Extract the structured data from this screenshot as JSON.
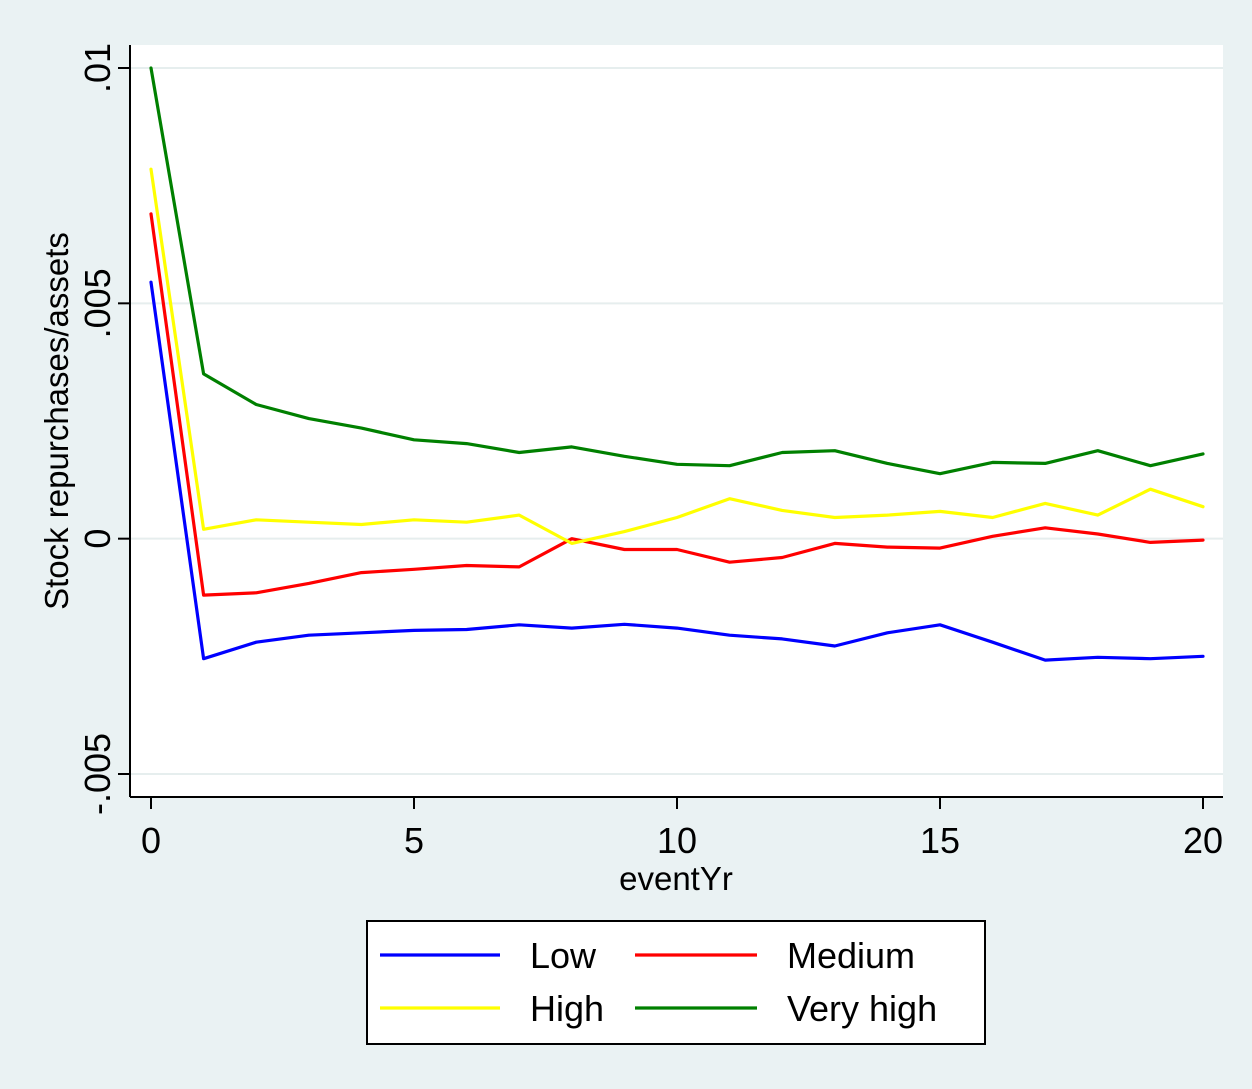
{
  "chart_data": {
    "type": "line",
    "xlabel": "eventYr",
    "ylabel": "Stock repurchases/assets",
    "xlim": [
      0,
      20
    ],
    "ylim": [
      -0.005,
      0.01
    ],
    "xticks": [
      0,
      5,
      10,
      15,
      20
    ],
    "xtick_labels": [
      "0",
      "5",
      "10",
      "15",
      "20"
    ],
    "yticks": [
      -0.005,
      0,
      0.005,
      0.01
    ],
    "ytick_labels": [
      "-.005",
      "0",
      ".005",
      ".01"
    ],
    "grid": true,
    "legend_position": "bottom",
    "x": [
      0,
      1,
      2,
      3,
      4,
      5,
      6,
      7,
      8,
      9,
      10,
      11,
      12,
      13,
      14,
      15,
      16,
      17,
      18,
      19,
      20
    ],
    "series": [
      {
        "name": "Low",
        "color": "#0000ff",
        "values": [
          0.00545,
          -0.00255,
          -0.0022,
          -0.00205,
          -0.002,
          -0.00195,
          -0.00193,
          -0.00183,
          -0.0019,
          -0.00182,
          -0.0019,
          -0.00205,
          -0.00213,
          -0.00228,
          -0.002,
          -0.00183,
          -0.0022,
          -0.00258,
          -0.00252,
          -0.00255,
          -0.0025
        ]
      },
      {
        "name": "Medium",
        "color": "#ff0000",
        "values": [
          0.0069,
          -0.0012,
          -0.00115,
          -0.00095,
          -0.00072,
          -0.00065,
          -0.00057,
          -0.0006,
          0.0,
          -0.00023,
          -0.00023,
          -0.0005,
          -0.0004,
          -0.0001,
          -0.00018,
          -0.0002,
          5e-05,
          0.00023,
          0.0001,
          -8e-05,
          -3e-05
        ]
      },
      {
        "name": "High",
        "color": "#ffff00",
        "values": [
          0.00785,
          0.0002,
          0.0004,
          0.00035,
          0.0003,
          0.0004,
          0.00035,
          0.0005,
          -0.0001,
          0.00015,
          0.00045,
          0.00085,
          0.0006,
          0.00045,
          0.0005,
          0.00058,
          0.00045,
          0.00075,
          0.0005,
          0.00105,
          0.00068
        ]
      },
      {
        "name": "Very high",
        "color": "#008000",
        "values": [
          0.01,
          0.0035,
          0.00285,
          0.00255,
          0.00235,
          0.0021,
          0.00202,
          0.00183,
          0.00195,
          0.00175,
          0.00158,
          0.00155,
          0.00183,
          0.00187,
          0.0016,
          0.00138,
          0.00162,
          0.0016,
          0.00187,
          0.00155,
          0.0018
        ]
      }
    ]
  }
}
